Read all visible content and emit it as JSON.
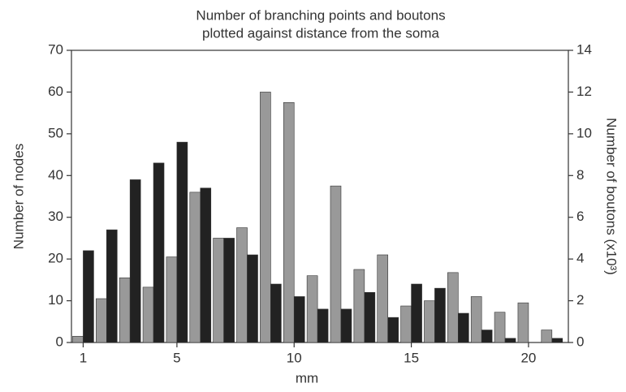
{
  "chart_data": {
    "type": "bar",
    "title": [
      "Number of branching points and boutons",
      "plotted against distance from the soma"
    ],
    "xlabel": "mm",
    "ylabel": "Number of nodes",
    "y2label": "Number of boutons (x10³)",
    "x": [
      1,
      2,
      3,
      4,
      5,
      6,
      7,
      8,
      9,
      10,
      11,
      12,
      13,
      14,
      15,
      16,
      17,
      18,
      19,
      20,
      21
    ],
    "xlim": [
      0.5,
      21.7
    ],
    "xticks": [
      1,
      5,
      10,
      15,
      20
    ],
    "ylim": [
      0,
      70
    ],
    "yticks": [
      0,
      10,
      20,
      30,
      40,
      50,
      60,
      70
    ],
    "y2lim": [
      0,
      14
    ],
    "y2ticks": [
      0,
      2,
      4,
      6,
      8,
      10,
      12,
      14
    ],
    "series": [
      {
        "color": "#999999",
        "axis": "y2",
        "values": [
          0.3,
          2.1,
          3.1,
          2.65,
          4.1,
          7.2,
          5.0,
          5.5,
          12.0,
          11.5,
          3.2,
          7.5,
          3.5,
          4.2,
          1.75,
          2.0,
          3.35,
          2.2,
          1.45,
          1.9,
          0.6
        ]
      },
      {
        "color": "#222222",
        "values": [
          22,
          27,
          39,
          43,
          48,
          37,
          25,
          21,
          14,
          11,
          8,
          8,
          12,
          6,
          14,
          13,
          7,
          3,
          1,
          0,
          1
        ]
      }
    ]
  }
}
